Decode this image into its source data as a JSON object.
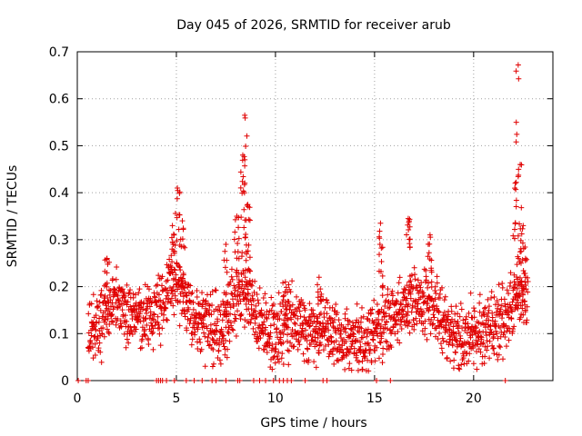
{
  "chart_data": {
    "type": "scatter",
    "title": "Day 045 of 2026, SRMTID for receiver arub",
    "xlabel": "GPS time / hours",
    "ylabel": "SRMTID / TECUs",
    "xlim": [
      0,
      24
    ],
    "ylim": [
      0,
      0.7
    ],
    "xticks": [
      0,
      5,
      10,
      15,
      20
    ],
    "yticks": [
      0,
      0.1,
      0.2,
      0.3,
      0.4,
      0.5,
      0.6,
      0.7
    ],
    "grid": true,
    "marker": "plus",
    "color": "#e00000",
    "series": [
      {
        "name": "SRMTID",
        "description": "dense cloud of points around 0.1-0.2 TECU with spikes near 5 h, 8.5 h and 22.3 h",
        "baseline": [
          [
            0.5,
            0.11
          ],
          [
            1.0,
            0.12
          ],
          [
            1.5,
            0.15
          ],
          [
            2.0,
            0.17
          ],
          [
            2.5,
            0.15
          ],
          [
            3.0,
            0.14
          ],
          [
            3.5,
            0.13
          ],
          [
            4.0,
            0.14
          ],
          [
            4.5,
            0.18
          ],
          [
            5.0,
            0.22
          ],
          [
            5.5,
            0.15
          ],
          [
            6.0,
            0.13
          ],
          [
            6.5,
            0.12
          ],
          [
            7.0,
            0.11
          ],
          [
            7.5,
            0.12
          ],
          [
            8.0,
            0.17
          ],
          [
            8.5,
            0.2
          ],
          [
            9.0,
            0.14
          ],
          [
            9.5,
            0.1
          ],
          [
            10.0,
            0.09
          ],
          [
            10.5,
            0.12
          ],
          [
            11.0,
            0.13
          ],
          [
            11.5,
            0.11
          ],
          [
            12.0,
            0.1
          ],
          [
            12.5,
            0.11
          ],
          [
            13.0,
            0.09
          ],
          [
            13.5,
            0.08
          ],
          [
            14.0,
            0.09
          ],
          [
            14.5,
            0.08
          ],
          [
            15.0,
            0.1
          ],
          [
            15.5,
            0.13
          ],
          [
            16.0,
            0.14
          ],
          [
            16.5,
            0.16
          ],
          [
            17.0,
            0.17
          ],
          [
            17.5,
            0.16
          ],
          [
            18.0,
            0.15
          ],
          [
            18.5,
            0.12
          ],
          [
            19.0,
            0.1
          ],
          [
            19.5,
            0.09
          ],
          [
            20.0,
            0.09
          ],
          [
            20.5,
            0.1
          ],
          [
            21.0,
            0.11
          ],
          [
            21.5,
            0.13
          ],
          [
            22.0,
            0.16
          ],
          [
            22.5,
            0.18
          ]
        ],
        "peaks": [
          {
            "x": 1.5,
            "y": 0.26
          },
          {
            "x": 4.8,
            "y": 0.33
          },
          {
            "x": 5.05,
            "y": 0.41
          },
          {
            "x": 5.3,
            "y": 0.34
          },
          {
            "x": 7.5,
            "y": 0.29
          },
          {
            "x": 8.05,
            "y": 0.35
          },
          {
            "x": 8.35,
            "y": 0.48
          },
          {
            "x": 8.45,
            "y": 0.565
          },
          {
            "x": 8.6,
            "y": 0.375
          },
          {
            "x": 10.5,
            "y": 0.21
          },
          {
            "x": 12.2,
            "y": 0.22
          },
          {
            "x": 15.3,
            "y": 0.335
          },
          {
            "x": 16.7,
            "y": 0.345
          },
          {
            "x": 17.8,
            "y": 0.31
          },
          {
            "x": 22.1,
            "y": 0.42
          },
          {
            "x": 22.25,
            "y": 0.672
          },
          {
            "x": 22.35,
            "y": 0.46
          },
          {
            "x": 22.5,
            "y": 0.33
          }
        ],
        "zero_points": [
          0.05,
          0.45,
          0.55,
          4.0,
          4.1,
          4.2,
          4.3,
          4.5,
          4.9,
          5.5,
          5.9,
          6.3,
          6.8,
          7.0,
          7.5,
          8.1,
          8.2,
          8.9,
          9.2,
          9.5,
          9.9,
          10.2,
          10.4,
          10.6,
          10.8,
          11.5,
          12.4,
          12.6,
          15.1,
          15.8,
          21.6
        ]
      }
    ]
  }
}
